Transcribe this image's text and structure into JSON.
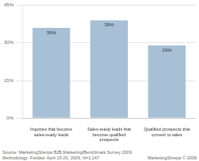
{
  "chart_data": {
    "type": "bar",
    "categories": [
      "Inquiries that become\nsales-ready leads",
      "Sales-ready leads that\nbecome qualified\nprospects",
      "Qualified prospects that\nconvert to sales"
    ],
    "values": [
      36,
      39,
      29
    ],
    "value_labels": [
      "36%",
      "39%",
      "29%"
    ],
    "data_labels": true,
    "color": "#a8c0d6",
    "ylim": [
      0,
      45
    ],
    "yticks": [
      {
        "value": 0,
        "label": "0%"
      },
      {
        "value": 15,
        "label": "15%"
      },
      {
        "value": 30,
        "label": "30%"
      },
      {
        "value": 45,
        "label": "45%"
      }
    ],
    "grid": true,
    "annotations": [
      "Source: MarketingSherpa B2B Marketing/Benchmark Survey 2009\nMethodology: Fielded: April 15-20, 2009, N=1,147",
      "MarketingSherpa",
      "© 2009"
    ]
  }
}
